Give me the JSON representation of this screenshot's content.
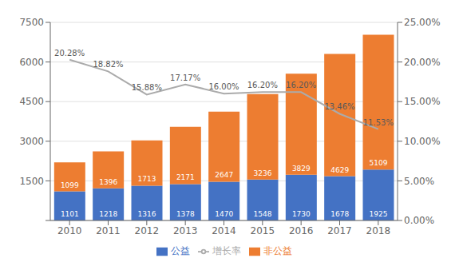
{
  "chart_data": {
    "type": "bar",
    "stacked": true,
    "data_labels": true,
    "grid": true,
    "legend": "bottom",
    "categories": [
      "2010",
      "2011",
      "2012",
      "2013",
      "2014",
      "2015",
      "2016",
      "2017",
      "2018"
    ],
    "series": [
      {
        "name": "公益",
        "type": "bar",
        "color": "#4472C4",
        "values": [
          1101,
          1218,
          1316,
          1378,
          1470,
          1548,
          1730,
          1678,
          1925
        ]
      },
      {
        "name": "非公益",
        "type": "bar",
        "color": "#ED7D31",
        "values": [
          1099,
          1396,
          1713,
          2171,
          2647,
          3236,
          3829,
          4629,
          5109
        ]
      },
      {
        "name": "增长率",
        "type": "line",
        "axis": "y2",
        "color": "#ABABAB",
        "values": [
          20.28,
          18.82,
          15.88,
          17.17,
          16.0,
          16.2,
          16.2,
          13.46,
          11.53
        ],
        "value_labels": [
          "20.28%",
          "18.82%",
          "15.88%",
          "17.17%",
          "16.00%",
          "16.20%",
          "16.20%",
          "13.46%",
          "11.53%"
        ]
      }
    ],
    "ylim": [
      0,
      7500
    ],
    "yticks": [
      0,
      1500,
      3000,
      4500,
      6000,
      7500
    ],
    "y2lim": [
      0,
      25
    ],
    "y2ticks": [
      {
        "value": 0,
        "label": "0.00%"
      },
      {
        "value": 5,
        "label": "5.00%"
      },
      {
        "value": 10,
        "label": "10.00%"
      },
      {
        "value": 15,
        "label": "15.00%"
      },
      {
        "value": 20,
        "label": "20.00%"
      },
      {
        "value": 25,
        "label": "25.00%"
      }
    ]
  }
}
